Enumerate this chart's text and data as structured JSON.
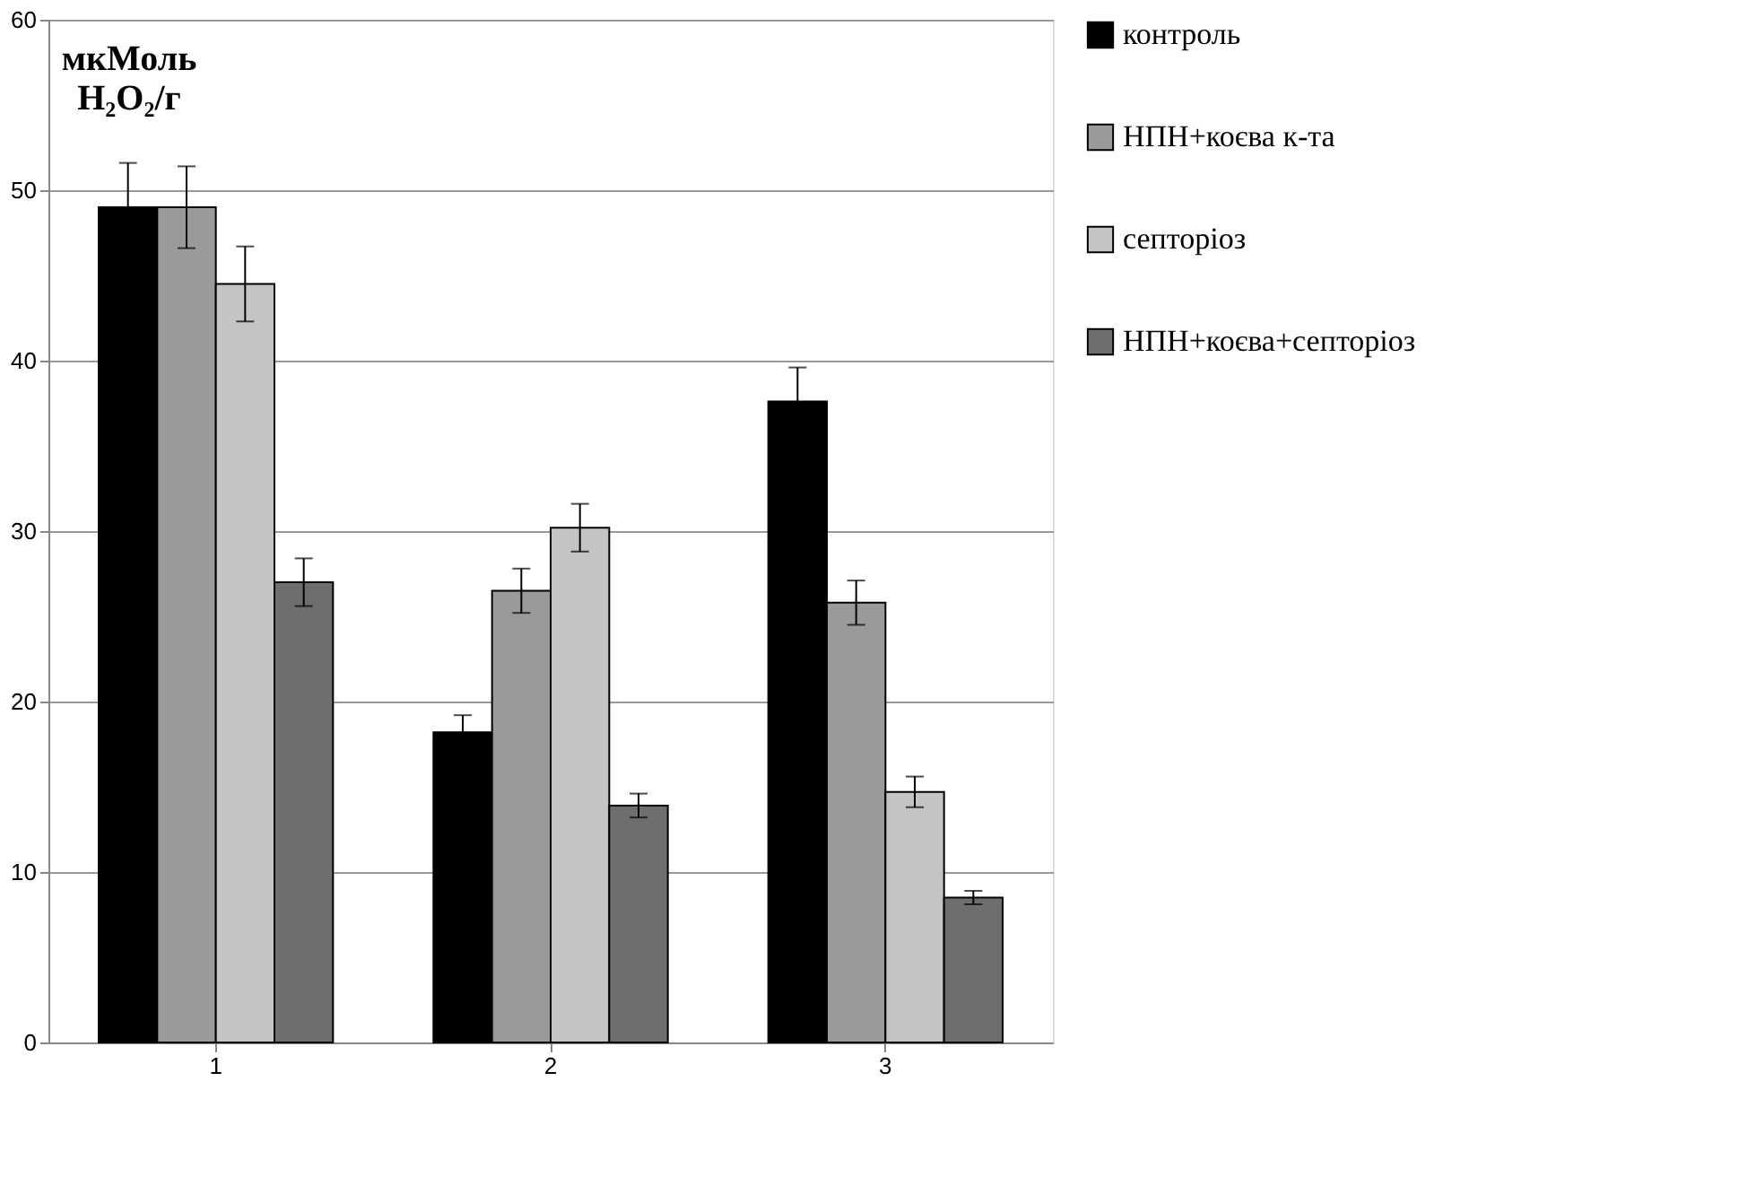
{
  "chart_data": {
    "type": "bar",
    "ylabel": "мкМоль H₂O₂/г",
    "categories": [
      "1",
      "2",
      "3"
    ],
    "series": [
      {
        "name": "контроль",
        "color": "#000000",
        "values": [
          49.0,
          18.2,
          37.6
        ],
        "errors": [
          2.6,
          1.0,
          2.0
        ]
      },
      {
        "name": "НПН+коєва к-та",
        "color": "#9a9a9a",
        "values": [
          49.0,
          26.5,
          25.8
        ],
        "errors": [
          2.4,
          1.3,
          1.3
        ]
      },
      {
        "name": "септоріоз",
        "color": "#c4c4c4",
        "values": [
          44.5,
          30.2,
          14.7
        ],
        "errors": [
          2.2,
          1.4,
          0.9
        ]
      },
      {
        "name": "НПН+коєва+септоріоз",
        "color": "#6e6e6e",
        "values": [
          27.0,
          13.9,
          8.5
        ],
        "errors": [
          1.4,
          0.7,
          0.4
        ]
      }
    ],
    "ylim": [
      0,
      60
    ],
    "yticks": [
      0,
      10,
      20,
      30,
      40,
      50,
      60
    ],
    "grid": "y",
    "legend": "right"
  }
}
